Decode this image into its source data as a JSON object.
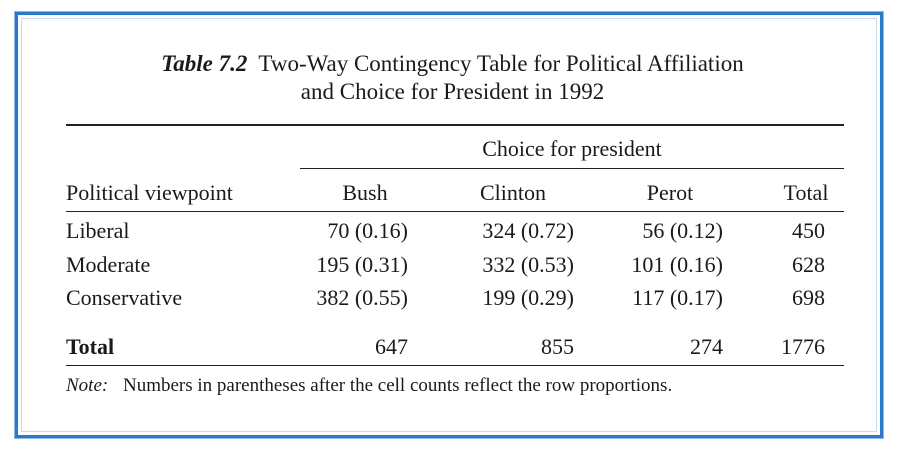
{
  "caption": {
    "label": "Table 7.2",
    "line1": "Two-Way Contingency Table for Political Affiliation",
    "line2": "and Choice for President in 1992"
  },
  "spanner": "Choice for president",
  "columns": {
    "row_header": "Political viewpoint",
    "bush": "Bush",
    "clinton": "Clinton",
    "perot": "Perot",
    "total": "Total"
  },
  "rows": [
    {
      "label": "Liberal",
      "bush": "70 (0.16)",
      "clinton": "324 (0.72)",
      "perot": "56 (0.12)",
      "total": "450"
    },
    {
      "label": "Moderate",
      "bush": "195 (0.31)",
      "clinton": "332 (0.53)",
      "perot": "101 (0.16)",
      "total": "628"
    },
    {
      "label": "Conservative",
      "bush": "382 (0.55)",
      "clinton": "199 (0.29)",
      "perot": "117 (0.17)",
      "total": "698"
    }
  ],
  "totals": {
    "label": "Total",
    "bush": "647",
    "clinton": "855",
    "perot": "274",
    "total": "1776"
  },
  "note": {
    "label": "Note:",
    "text": "Numbers in parentheses after the cell counts reflect the row proportions."
  },
  "colors": {
    "frame": "#2e79c7"
  }
}
